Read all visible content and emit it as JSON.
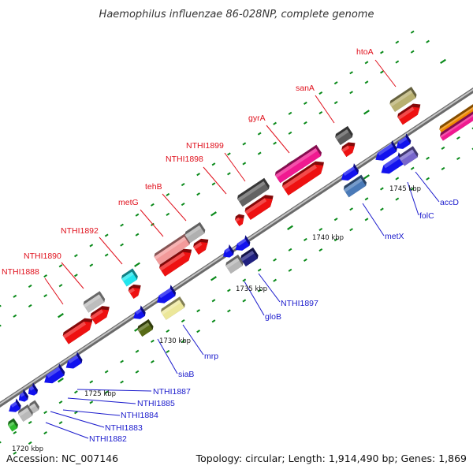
{
  "title": "Haemophilus influenzae 86-028NP, complete genome",
  "accession": "Accession: NC_007146",
  "summary": "Topology: circular; Length: 1,914,490 bp; Genes: 1,869",
  "colors": {
    "forward_label": "#e0101c",
    "reverse_label": "#1a1acc",
    "backbone": "#8a8a8a",
    "tick": "#0a8a1a"
  },
  "kbp_labels": [
    "1720 kbp",
    "1725 kbp",
    "1730 kbp",
    "1735 kbp",
    "1740 kbp",
    "1745 kbp"
  ],
  "forward_labels": [
    "NTHI1888",
    "NTHI1890",
    "NTHI1892",
    "metG",
    "tehB",
    "NTHI1898",
    "NTHI1899",
    "gyrA",
    "sanA",
    "htoA"
  ],
  "reverse_labels": [
    "NTHI1882",
    "NTHI1883",
    "NTHI1884",
    "NTHI1885",
    "NTHI1887",
    "siaB",
    "mrp",
    "gloB",
    "NTHI1897",
    "metX",
    "folC",
    "accD"
  ]
}
